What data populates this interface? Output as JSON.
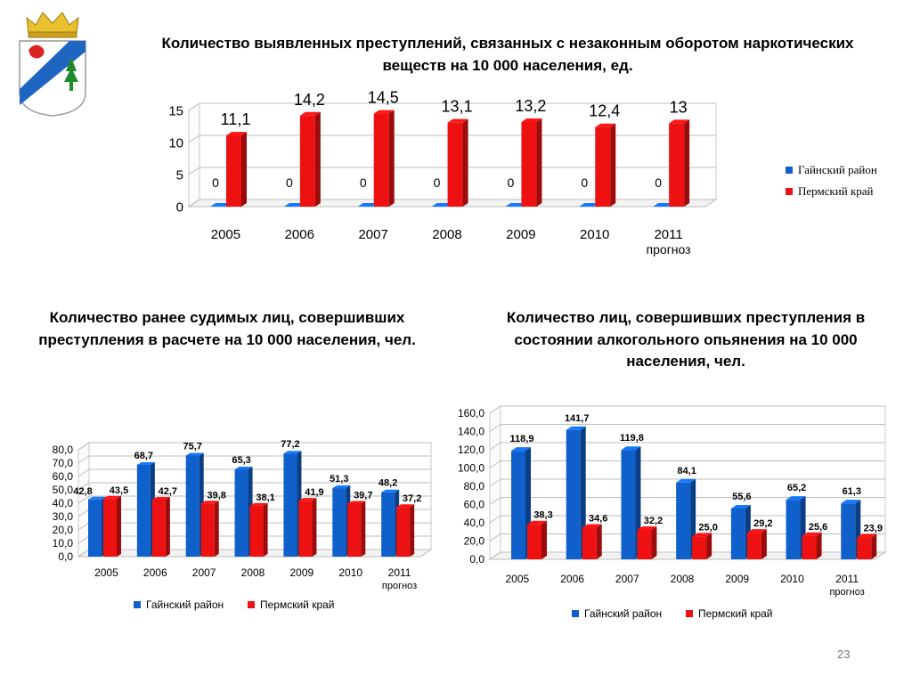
{
  "titles": {
    "chart1": "Количество выявленных преступлений, связанных с незаконным оборотом наркотических веществ на 10 000 населения, ед.",
    "chart2": "Количество ранее судимых лиц, совершивших  преступления в расчете на 10 000 населения, чел.",
    "chart3": "Количество лиц, совершивших преступления в состоянии алкогольного опьянения на 10 000 населения, чел."
  },
  "colors": {
    "gainy": "#1060cc",
    "perm": "#ee1111"
  },
  "page_number": "23",
  "chart_data": [
    {
      "type": "bar",
      "title": "Количество выявленных преступлений, связанных с незаконным оборотом наркотических веществ на 10 000 населения, ед.",
      "categories": [
        "2005",
        "2006",
        "2007",
        "2008",
        "2009",
        "2010",
        "2011"
      ],
      "category_sublabels": [
        "",
        "",
        "",
        "",
        "",
        "",
        "прогноз"
      ],
      "series": [
        {
          "name": "Гайнский район",
          "values": [
            0,
            0,
            0,
            0,
            0,
            0,
            0
          ],
          "labels": [
            "0",
            "0",
            "0",
            "0",
            "0",
            "0",
            "0"
          ]
        },
        {
          "name": "Пермский край",
          "values": [
            11.1,
            14.2,
            14.5,
            13.1,
            13.2,
            12.4,
            13
          ],
          "labels": [
            "11,1",
            "14,2",
            "14,5",
            "13,1",
            "13,2",
            "12,4",
            "13"
          ]
        }
      ],
      "ylim": [
        0,
        15
      ],
      "yticks": [
        "0",
        "5",
        "10",
        "15"
      ],
      "grid": true,
      "legend": "right"
    },
    {
      "type": "bar",
      "title": "Количество ранее судимых лиц, совершивших  преступления в расчете на 10 000 населения, чел.",
      "categories": [
        "2005",
        "2006",
        "2007",
        "2008",
        "2009",
        "2010",
        "2011"
      ],
      "category_sublabels": [
        "",
        "",
        "",
        "",
        "",
        "",
        "прогноз"
      ],
      "series": [
        {
          "name": "Гайнский район",
          "values": [
            42.8,
            68.7,
            75.7,
            65.3,
            77.2,
            51.3,
            48.2
          ],
          "labels": [
            "42,8",
            "68,7",
            "75,7",
            "65,3",
            "77,2",
            "51,3",
            "48,2"
          ]
        },
        {
          "name": "Пермский край",
          "values": [
            43.5,
            42.7,
            39.8,
            38.1,
            41.9,
            39.7,
            37.2
          ],
          "labels": [
            "43,5",
            "42,7",
            "39,8",
            "38,1",
            "41,9",
            "39,7",
            "37,2"
          ]
        }
      ],
      "ylim": [
        0,
        80
      ],
      "yticks": [
        "0,0",
        "10,0",
        "20,0",
        "30,0",
        "40,0",
        "50,0",
        "60,0",
        "70,0",
        "80,0"
      ],
      "grid": true,
      "legend": "bottom"
    },
    {
      "type": "bar",
      "title": "Количество лиц, совершивших преступления в состоянии алкогольного опьянения на 10 000 населения, чел.",
      "categories": [
        "2005",
        "2006",
        "2007",
        "2008",
        "2009",
        "2010",
        "2011"
      ],
      "category_sublabels": [
        "",
        "",
        "",
        "",
        "",
        "",
        "прогноз"
      ],
      "series": [
        {
          "name": "Гайнский район",
          "values": [
            118.9,
            141.7,
            119.8,
            84.1,
            55.6,
            65.2,
            61.3
          ],
          "labels": [
            "118,9",
            "141,7",
            "119,8",
            "84,1",
            "55,6",
            "65,2",
            "61,3"
          ]
        },
        {
          "name": "Пермский край",
          "values": [
            38.3,
            34.6,
            32.2,
            25.0,
            29.2,
            25.6,
            23.9
          ],
          "labels": [
            "38,3",
            "34,6",
            "32,2",
            "25,0",
            "29,2",
            "25,6",
            "23,9"
          ]
        }
      ],
      "ylim": [
        0,
        160
      ],
      "yticks": [
        "0,0",
        "20,0",
        "40,0",
        "60,0",
        "80,0",
        "100,0",
        "120,0",
        "140,0",
        "160,0"
      ],
      "grid": true,
      "legend": "bottom"
    }
  ]
}
